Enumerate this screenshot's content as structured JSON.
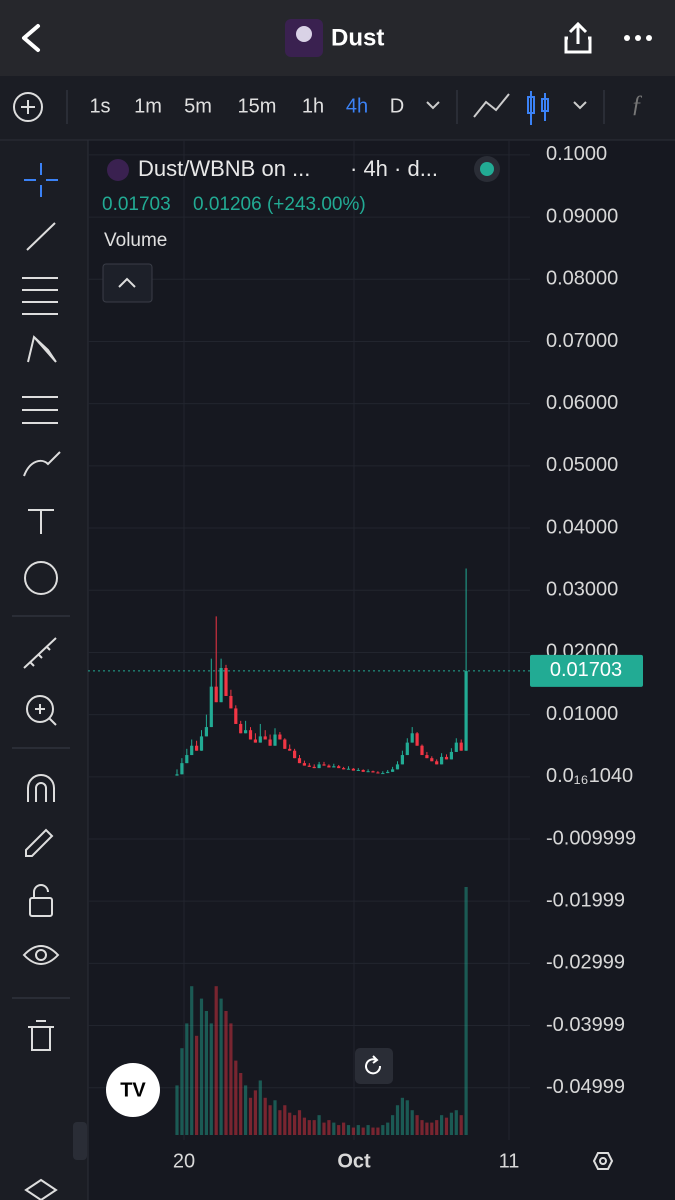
{
  "header": {
    "title": "Dust"
  },
  "timeframes": {
    "items": [
      "1s",
      "1m",
      "5m",
      "15m",
      "1h",
      "4h",
      "D"
    ],
    "active": "4h"
  },
  "chart_data": {
    "type": "candlestick",
    "title": "Dust/WBNB on ...",
    "interval": "· 4h · d...",
    "last_price": 0.01703,
    "change": "0.01206 (+243.00%)",
    "volume_label": "Volume",
    "up_color": "#22ab94",
    "down_color": "#f23645",
    "first_open": 0.0002,
    "closes": [
      0.0004,
      0.0022,
      0.0035,
      0.005,
      0.0042,
      0.0065,
      0.008,
      0.0145,
      0.012,
      0.0175,
      0.013,
      0.011,
      0.0085,
      0.007,
      0.0075,
      0.006,
      0.0055,
      0.0065,
      0.006,
      0.005,
      0.0068,
      0.006,
      0.0045,
      0.0042,
      0.003,
      0.0022,
      0.0018,
      0.0016,
      0.0014,
      0.002,
      0.0018,
      0.0015,
      0.0017,
      0.0014,
      0.0012,
      0.0013,
      0.001,
      0.0011,
      0.0008,
      0.0009,
      0.0007,
      0.0006,
      0.0006,
      0.0008,
      0.0012,
      0.002,
      0.0035,
      0.0055,
      0.007,
      0.005,
      0.0035,
      0.003,
      0.0025,
      0.002,
      0.0032,
      0.0028,
      0.004,
      0.0055,
      0.0042,
      0.017
    ],
    "highs": [
      0.0012,
      0.003,
      0.0045,
      0.006,
      0.0058,
      0.0075,
      0.01,
      0.019,
      0.0258,
      0.019,
      0.018,
      0.014,
      0.0115,
      0.009,
      0.009,
      0.008,
      0.007,
      0.0085,
      0.0075,
      0.0068,
      0.0078,
      0.0072,
      0.0062,
      0.0052,
      0.0045,
      0.0035,
      0.0026,
      0.0022,
      0.002,
      0.0024,
      0.0024,
      0.002,
      0.0021,
      0.0019,
      0.0016,
      0.0017,
      0.0014,
      0.0014,
      0.0012,
      0.0012,
      0.001,
      0.0009,
      0.0009,
      0.0011,
      0.0016,
      0.0025,
      0.0042,
      0.0062,
      0.008,
      0.0072,
      0.0052,
      0.004,
      0.0033,
      0.0028,
      0.0038,
      0.0036,
      0.0046,
      0.0062,
      0.006,
      0.0335
    ],
    "volumes": [
      20,
      35,
      45,
      60,
      40,
      55,
      50,
      45,
      60,
      55,
      50,
      45,
      30,
      25,
      20,
      15,
      18,
      22,
      15,
      12,
      14,
      10,
      12,
      9,
      8,
      10,
      7,
      6,
      6,
      8,
      5,
      6,
      5,
      4,
      5,
      4,
      3,
      4,
      3,
      4,
      3,
      3,
      4,
      5,
      8,
      12,
      15,
      14,
      10,
      8,
      6,
      5,
      5,
      6,
      8,
      7,
      9,
      10,
      8,
      100
    ],
    "ylim": [
      -0.0584,
      0.1024
    ],
    "yticks": [
      {
        "value": 0.1,
        "label": "0.1000"
      },
      {
        "value": 0.09,
        "label": "0.09000"
      },
      {
        "value": 0.08,
        "label": "0.08000"
      },
      {
        "value": 0.07,
        "label": "0.07000"
      },
      {
        "value": 0.06,
        "label": "0.06000"
      },
      {
        "value": 0.05,
        "label": "0.05000"
      },
      {
        "value": 0.04,
        "label": "0.04000"
      },
      {
        "value": 0.03,
        "label": "0.03000"
      },
      {
        "value": 0.02,
        "label": "0.02000"
      },
      {
        "value": 0.01,
        "label": "0.01000"
      },
      {
        "value": 1.04e-17,
        "label": "0.0₁₆1040"
      },
      {
        "value": -0.009999,
        "label": "-0.009999"
      },
      {
        "value": -0.01999,
        "label": "-0.01999"
      },
      {
        "value": -0.02999,
        "label": "-0.02999"
      },
      {
        "value": -0.03999,
        "label": "-0.03999"
      },
      {
        "value": -0.04999,
        "label": "-0.04999"
      }
    ],
    "x_labels": [
      "20",
      "Oct",
      "11"
    ]
  }
}
